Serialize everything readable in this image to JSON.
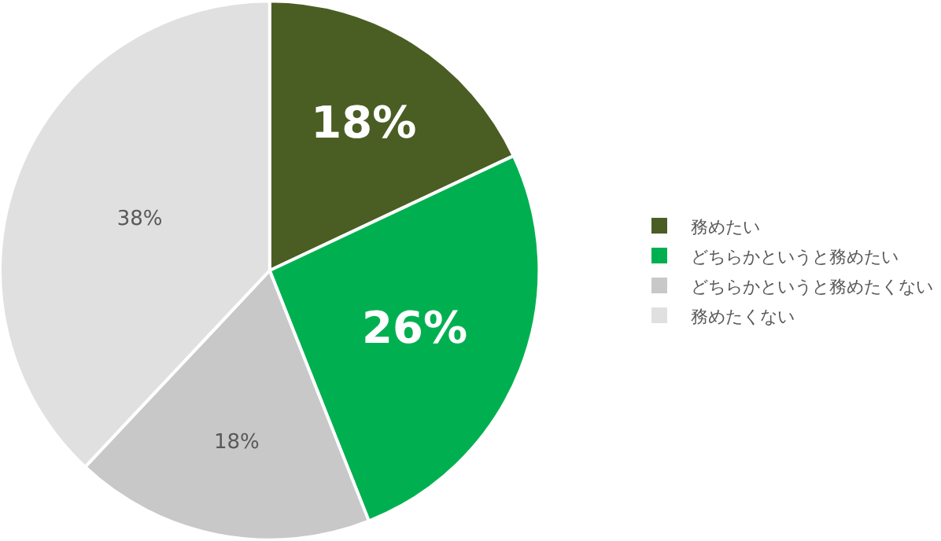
{
  "chart_data": {
    "type": "pie",
    "categories": [
      "務めたい",
      "どちらかというと務めたい",
      "どちらかというと務めたくない",
      "務めたくない"
    ],
    "values": [
      18,
      26,
      18,
      38
    ],
    "colors": [
      "#4a5e23",
      "#00b050",
      "#c8c8c8",
      "#e0e0e0"
    ],
    "value_labels": [
      "18%",
      "26%",
      "18%",
      "38%"
    ],
    "legend": "right"
  }
}
